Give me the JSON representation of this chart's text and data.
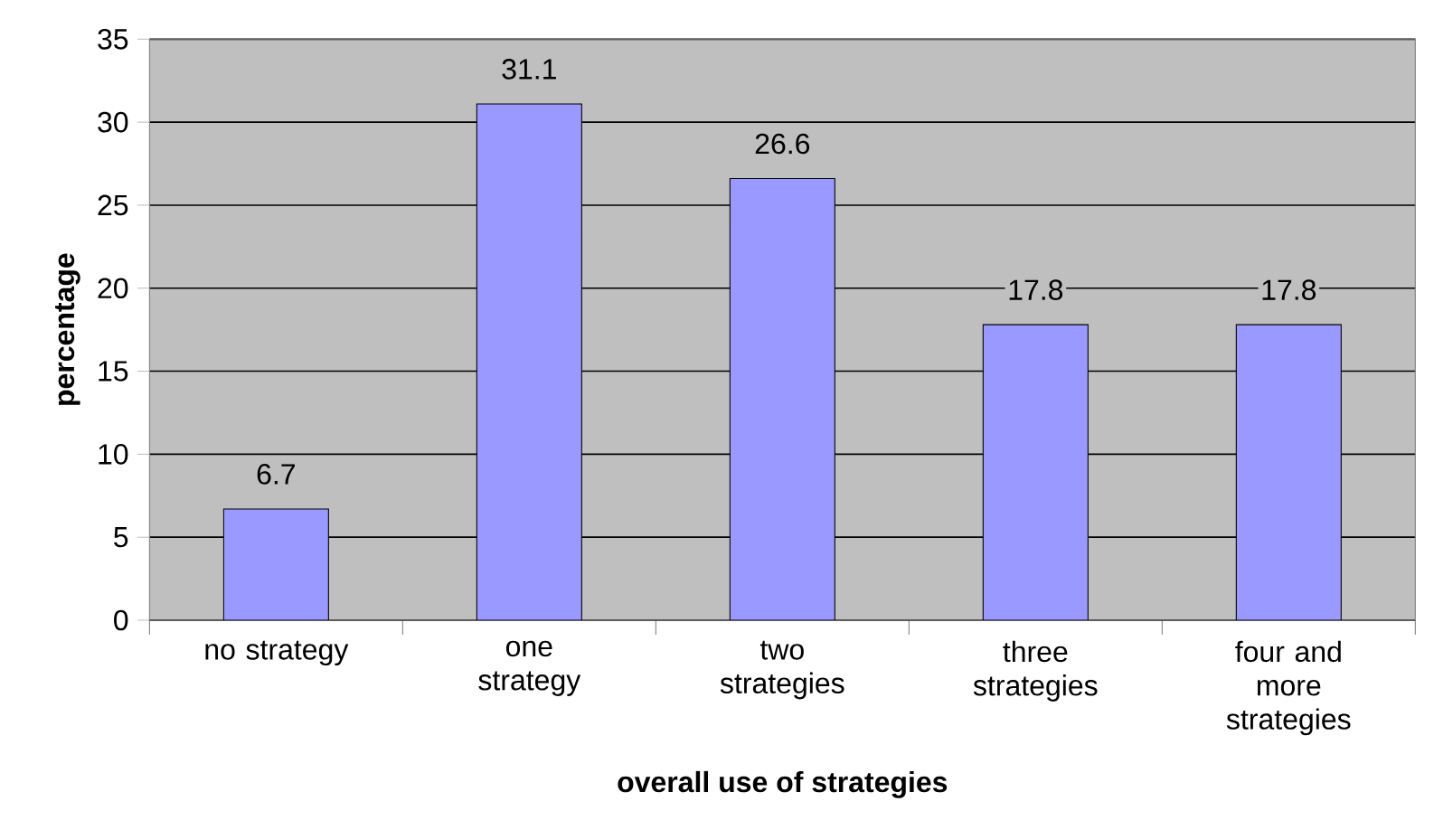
{
  "chart_data": {
    "type": "bar",
    "xlabel": "overall use of strategies",
    "ylabel": "percentage",
    "categories": [
      "no strategy",
      "one strategy",
      "two strategies",
      "three strategies",
      "four and more strategies"
    ],
    "values": [
      6.7,
      31.1,
      26.6,
      17.8,
      17.8
    ],
    "color": "#9999ff",
    "ylim": [
      0,
      35
    ],
    "yticks": [
      0,
      5,
      10,
      15,
      20,
      25,
      30,
      35
    ],
    "grid": "y",
    "data_labels": true
  }
}
